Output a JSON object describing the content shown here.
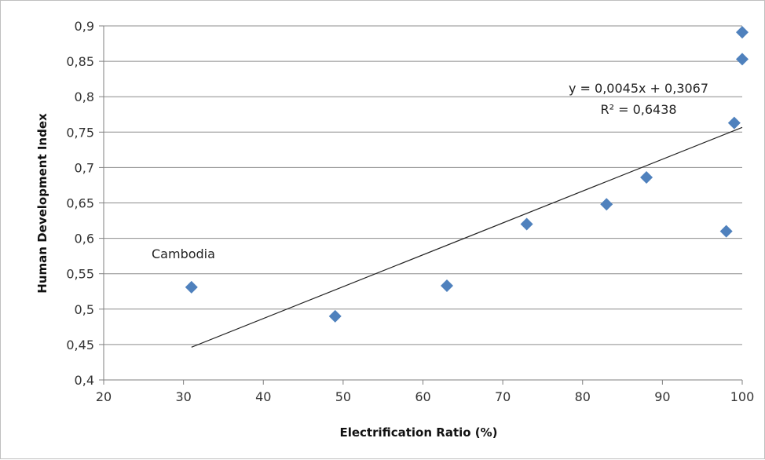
{
  "chart_data": {
    "type": "scatter",
    "title": "",
    "xlabel": "Electrification  Ratio (%)",
    "ylabel": "Human Development Index",
    "xlim": [
      20,
      100
    ],
    "ylim": [
      0.4,
      0.9
    ],
    "x_ticks": [
      "20",
      "30",
      "40",
      "50",
      "60",
      "70",
      "80",
      "90",
      "100"
    ],
    "y_ticks": [
      "0,4",
      "0,45",
      "0,5",
      "0,55",
      "0,6",
      "0,65",
      "0,7",
      "0,75",
      "0,8",
      "0,85",
      "0,9"
    ],
    "grid": "horizontal",
    "marker": "diamond",
    "color": "#4f81bd",
    "points": [
      {
        "x": 31,
        "y": 0.531
      },
      {
        "x": 49,
        "y": 0.49
      },
      {
        "x": 63,
        "y": 0.533
      },
      {
        "x": 73,
        "y": 0.62
      },
      {
        "x": 83,
        "y": 0.648
      },
      {
        "x": 88,
        "y": 0.686
      },
      {
        "x": 98,
        "y": 0.61
      },
      {
        "x": 99,
        "y": 0.763
      },
      {
        "x": 100,
        "y": 0.853
      },
      {
        "x": 100,
        "y": 0.891
      }
    ],
    "trendline": {
      "slope": 0.0045,
      "intercept": 0.3067,
      "x_range": [
        31,
        100
      ],
      "equation": "y = 0,0045x + 0,3067",
      "r_squared": "R² = 0,6438"
    },
    "annotations": [
      {
        "text": "Cambodia",
        "x": 31,
        "y": 0.531
      }
    ]
  }
}
